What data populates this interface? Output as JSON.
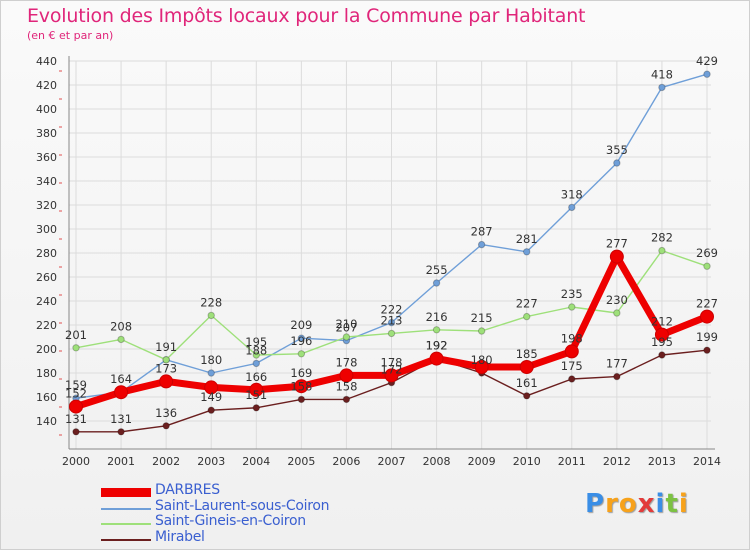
{
  "header": {
    "title": "Evolution des Impôts locaux pour la Commune par Habitant",
    "subtitle": "(en € et par an)"
  },
  "logo": {
    "letters": [
      "P",
      "r",
      "o",
      "x",
      "i",
      "t",
      "i"
    ],
    "colors": [
      "#3a8ee6",
      "#f7a21b",
      "#f7a21b",
      "#e23b3b",
      "#3a8ee6",
      "#7cc242",
      "#f7a21b"
    ]
  },
  "chart_data": {
    "type": "line",
    "x": [
      2000,
      2001,
      2002,
      2003,
      2004,
      2005,
      2006,
      2007,
      2008,
      2009,
      2010,
      2011,
      2012,
      2013,
      2014
    ],
    "ylim": [
      130,
      440
    ],
    "yticks": [
      140,
      160,
      180,
      200,
      220,
      240,
      260,
      280,
      300,
      320,
      340,
      360,
      380,
      400,
      420,
      440
    ],
    "grid": true,
    "legend_position": "bottom-left",
    "series": [
      {
        "name": "DARBRES",
        "color": "#ee0000",
        "values": [
          152,
          164,
          173,
          168,
          166,
          169,
          178,
          178,
          192,
          185,
          185,
          198,
          277,
          212,
          227
        ],
        "labels": [
          "152",
          "164",
          "173",
          "",
          "166",
          "169",
          "178",
          "178",
          "192",
          "",
          "185",
          "198",
          "277",
          "212",
          "227"
        ]
      },
      {
        "name": "Saint-Laurent-sous-Coiron",
        "color": "#6f9fd8",
        "values": [
          159,
          164,
          191,
          180,
          188,
          209,
          207,
          222,
          255,
          287,
          281,
          318,
          355,
          418,
          429
        ],
        "labels": [
          "159",
          "",
          "",
          "180",
          "188",
          "209",
          "207",
          "222",
          "255",
          "287",
          "281",
          "318",
          "355",
          "418",
          "429"
        ]
      },
      {
        "name": "Saint-Gineis-en-Coiron",
        "color": "#9ee07a",
        "values": [
          201,
          208,
          191,
          228,
          195,
          196,
          210,
          213,
          216,
          215,
          227,
          235,
          230,
          282,
          269
        ],
        "labels": [
          "201",
          "208",
          "191",
          "228",
          "195",
          "196",
          "210",
          "213",
          "216",
          "215",
          "227",
          "235",
          "230",
          "282",
          "269"
        ]
      },
      {
        "name": "Mirabel",
        "color": "#6b1f1f",
        "values": [
          131,
          131,
          136,
          149,
          151,
          158,
          158,
          172,
          192,
          180,
          161,
          175,
          177,
          195,
          199
        ],
        "labels": [
          "131",
          "131",
          "136",
          "149",
          "151",
          "158",
          "158",
          "172",
          "192",
          "180",
          "161",
          "175",
          "177",
          "195",
          "199"
        ]
      }
    ]
  }
}
